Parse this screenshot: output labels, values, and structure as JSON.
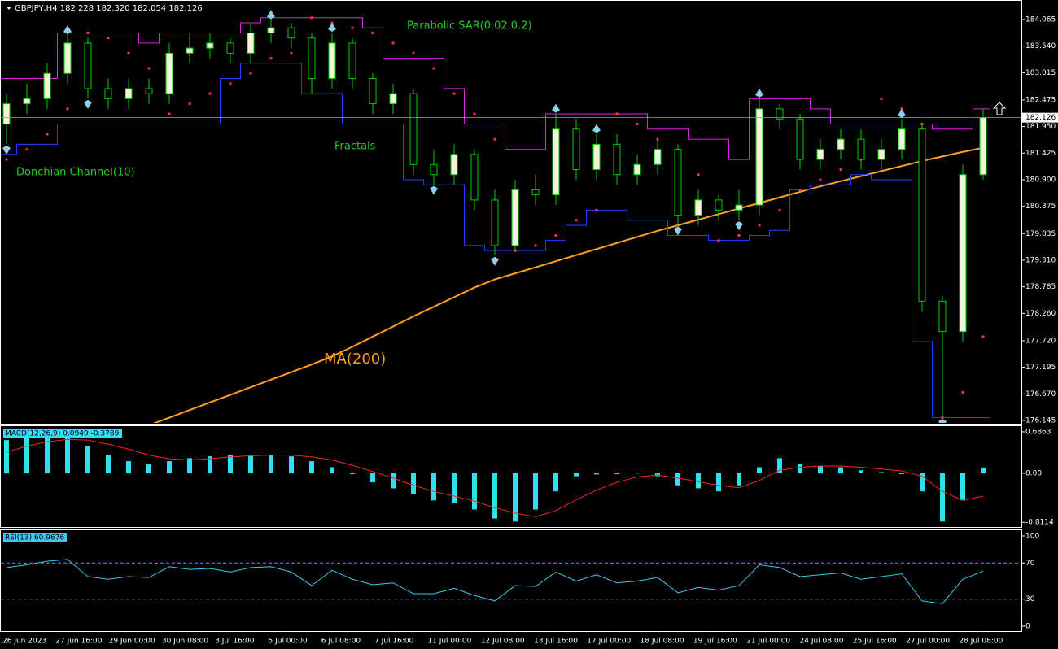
{
  "chart_data": [
    {
      "type": "candlestick",
      "title": "GBPJPY,H4  182.228 182.320 182.054 182.126",
      "annotations": [
        "Parabolic SAR(0.02,0.2)",
        "Fractals",
        "Donchian Channel(10)",
        "MA(200)"
      ],
      "x_labels": [
        "26 Jun 2023",
        "27 Jun 16:00",
        "29 Jun 00:00",
        "30 Jun 08:00",
        "3 Jul 16:00",
        "5 Jul 00:00",
        "6 Jul 08:00",
        "7 Jul 16:00",
        "11 Jul 00:00",
        "12 Jul 08:00",
        "13 Jul 16:00",
        "17 Jul 00:00",
        "18 Jul 08:00",
        "19 Jul 16:00",
        "21 Jul 00:00",
        "24 Jul 08:00",
        "25 Jul 16:00",
        "27 Jul 00:00",
        "28 Jul 08:00"
      ],
      "open": [
        182.0,
        182.4,
        182.5,
        183.0,
        183.6,
        182.7,
        182.5,
        182.7,
        182.6,
        183.4,
        183.5,
        183.6,
        183.4,
        183.8,
        183.9,
        183.7,
        182.9,
        183.6,
        182.9,
        182.4,
        182.6,
        181.2,
        181.0,
        181.4,
        180.5,
        179.6,
        180.7,
        180.6,
        181.9,
        181.1,
        181.6,
        181.0,
        181.2,
        181.5,
        180.2,
        180.5,
        180.3,
        180.4,
        182.3,
        182.1,
        181.3,
        181.5,
        181.7,
        181.3,
        181.5,
        181.9,
        178.5,
        177.9,
        181.0
      ],
      "high": [
        182.6,
        182.8,
        183.2,
        183.8,
        183.7,
        182.9,
        182.9,
        182.9,
        183.6,
        183.8,
        183.8,
        183.7,
        184.0,
        184.1,
        184.0,
        183.8,
        183.8,
        183.7,
        183.0,
        182.8,
        182.7,
        181.5,
        181.6,
        181.5,
        180.7,
        180.9,
        181.0,
        182.2,
        182.1,
        181.8,
        181.8,
        181.4,
        181.7,
        181.6,
        180.7,
        180.6,
        180.7,
        182.5,
        182.4,
        182.2,
        181.7,
        181.9,
        181.9,
        181.7,
        182.1,
        182.0,
        178.6,
        181.2,
        182.3
      ],
      "low": [
        181.6,
        182.2,
        182.3,
        182.8,
        182.5,
        182.3,
        182.3,
        182.4,
        182.4,
        183.2,
        183.3,
        183.2,
        183.2,
        183.6,
        183.5,
        182.6,
        182.7,
        182.7,
        182.2,
        182.2,
        181.0,
        180.8,
        180.8,
        180.3,
        179.4,
        179.5,
        180.4,
        180.4,
        180.9,
        180.9,
        180.8,
        180.8,
        181.0,
        180.0,
        180.0,
        180.1,
        180.1,
        180.2,
        181.9,
        181.1,
        181.1,
        181.3,
        181.1,
        181.1,
        181.3,
        178.3,
        176.2,
        177.7,
        180.9
      ],
      "close": [
        182.4,
        182.5,
        183.0,
        183.6,
        182.7,
        182.5,
        182.7,
        182.6,
        183.4,
        183.5,
        183.6,
        183.4,
        183.8,
        183.9,
        183.7,
        182.9,
        183.6,
        182.9,
        182.4,
        182.6,
        181.2,
        181.0,
        181.4,
        180.5,
        179.6,
        180.7,
        180.6,
        181.9,
        181.1,
        181.6,
        181.0,
        181.2,
        181.5,
        180.2,
        180.5,
        180.3,
        180.4,
        182.3,
        182.1,
        181.3,
        181.5,
        181.7,
        181.3,
        181.5,
        181.9,
        178.5,
        177.9,
        181.0,
        182.126
      ],
      "ma": {
        "color": "#ffa020",
        "values": [
          175.0,
          175.15,
          175.3,
          175.45,
          175.6,
          175.75,
          175.9,
          176.05,
          176.2,
          176.35,
          176.5,
          176.65,
          176.8,
          176.95,
          177.1,
          177.25,
          177.41,
          177.6,
          177.8,
          178.0,
          178.2,
          178.39,
          178.58,
          178.77,
          178.93,
          179.05,
          179.17,
          179.29,
          179.41,
          179.53,
          179.65,
          179.77,
          179.89,
          180.0,
          180.11,
          180.22,
          180.33,
          180.44,
          180.55,
          180.66,
          180.77,
          180.87,
          180.97,
          181.07,
          181.17,
          181.27,
          181.36,
          181.45,
          181.53
        ]
      },
      "donchian_upper": {
        "color": "#e020e0",
        "values": [
          182.9,
          182.9,
          182.9,
          183.8,
          183.8,
          183.8,
          183.8,
          183.6,
          183.8,
          183.8,
          183.8,
          183.8,
          184.0,
          184.1,
          184.1,
          184.1,
          184.1,
          184.1,
          183.9,
          183.3,
          183.3,
          183.3,
          182.7,
          182.0,
          182.0,
          181.5,
          181.5,
          182.2,
          182.2,
          182.2,
          182.2,
          182.2,
          181.9,
          181.9,
          181.7,
          181.7,
          181.3,
          182.5,
          182.5,
          182.5,
          182.3,
          182.0,
          182.0,
          182.0,
          182.0,
          182.0,
          181.9,
          181.9,
          182.3
        ]
      },
      "donchian_lower": {
        "color": "#2040ff",
        "values": [
          181.4,
          181.6,
          181.6,
          182.0,
          182.0,
          182.0,
          182.0,
          182.0,
          182.0,
          182.0,
          182.0,
          182.9,
          183.2,
          183.2,
          183.2,
          182.6,
          182.6,
          182.0,
          182.0,
          182.0,
          180.9,
          180.8,
          180.8,
          179.6,
          179.5,
          179.5,
          179.5,
          179.7,
          180.0,
          180.3,
          180.3,
          180.1,
          180.1,
          179.8,
          179.8,
          179.7,
          179.7,
          179.8,
          179.9,
          180.7,
          180.8,
          180.8,
          181.0,
          180.9,
          180.9,
          177.7,
          176.2,
          176.2,
          176.2
        ]
      },
      "sar": {
        "color": "#ff3050",
        "values": [
          181.3,
          181.5,
          181.8,
          182.3,
          183.8,
          183.7,
          183.4,
          183.1,
          182.2,
          182.4,
          182.6,
          182.8,
          183.0,
          183.3,
          183.4,
          184.1,
          184.0,
          183.9,
          183.8,
          183.6,
          183.4,
          183.1,
          182.6,
          182.2,
          181.7,
          179.5,
          179.6,
          179.8,
          180.1,
          180.3,
          182.2,
          182.0,
          181.7,
          181.3,
          181.0,
          179.7,
          179.8,
          180.0,
          180.3,
          180.7,
          180.9,
          181.1,
          181.3,
          182.5,
          182.3,
          182.0,
          176.2,
          176.7,
          177.8
        ]
      },
      "fractals_up": {
        "x": [
          3,
          13,
          16,
          27,
          29,
          37,
          44
        ],
        "values": [
          183.95,
          184.25,
          184.0,
          182.4,
          182.0,
          182.7,
          182.3
        ]
      },
      "fractals_down": {
        "x": [
          0,
          4,
          21,
          24,
          33,
          36,
          46
        ],
        "values": [
          181.4,
          182.3,
          180.6,
          179.2,
          179.8,
          179.9,
          176.0
        ]
      },
      "last_price": 182.126,
      "ylim": [
        176.08,
        184.45
      ],
      "yticks": [
        184.065,
        {
          "value": 183.54,
          "label": "183.540"
        },
        183.015,
        182.475,
        {
          "value": 181.95,
          "label": "181.950"
        },
        181.425,
        {
          "value": 180.9,
          "label": "180.900"
        },
        180.375,
        179.835,
        {
          "value": 179.31,
          "label": "179.310"
        },
        178.785,
        {
          "value": 178.26,
          "label": "178.260"
        },
        {
          "value": 177.72,
          "label": "177.720"
        },
        177.195,
        {
          "value": 176.67,
          "label": "176.670"
        },
        176.145
      ]
    },
    {
      "type": "bar",
      "title": "MACD(12,26,9) 0.0949 -0.3789",
      "color": "#30e0f0",
      "signal_color": "#ff2020",
      "values": [
        0.55,
        0.6,
        0.6,
        0.6,
        0.45,
        0.3,
        0.2,
        0.15,
        0.2,
        0.25,
        0.28,
        0.3,
        0.3,
        0.3,
        0.28,
        0.2,
        0.1,
        0.0,
        -0.15,
        -0.25,
        -0.35,
        -0.45,
        -0.5,
        -0.6,
        -0.75,
        -0.8,
        -0.6,
        -0.3,
        -0.05,
        -0.02,
        0.0,
        0.01,
        -0.05,
        -0.2,
        -0.25,
        -0.3,
        -0.2,
        0.1,
        0.25,
        0.15,
        0.12,
        0.1,
        0.05,
        0.02,
        0.0,
        -0.3,
        -0.8,
        -0.45,
        0.0949
      ],
      "signal": [
        0.35,
        0.45,
        0.52,
        0.56,
        0.55,
        0.48,
        0.4,
        0.3,
        0.24,
        0.22,
        0.24,
        0.27,
        0.29,
        0.3,
        0.3,
        0.27,
        0.22,
        0.13,
        0.03,
        -0.08,
        -0.2,
        -0.3,
        -0.38,
        -0.46,
        -0.57,
        -0.66,
        -0.72,
        -0.62,
        -0.44,
        -0.28,
        -0.15,
        -0.06,
        -0.03,
        -0.08,
        -0.14,
        -0.2,
        -0.24,
        -0.12,
        0.05,
        0.1,
        0.12,
        0.12,
        0.1,
        0.07,
        0.04,
        -0.05,
        -0.3,
        -0.45,
        -0.3789
      ],
      "ylim": [
        -0.89,
        0.78
      ],
      "yticks": [
        0.6863,
        {
          "value": 0,
          "label": "0.00"
        },
        -0.8114
      ]
    },
    {
      "type": "line",
      "title": "RSI(13) 60.9676",
      "color": "#40c8f0",
      "level_color": "#8080ff",
      "values": [
        65,
        68,
        72,
        74,
        55,
        52,
        55,
        54,
        66,
        63,
        64,
        60,
        65,
        66,
        60,
        45,
        62,
        52,
        46,
        48,
        36,
        36,
        42,
        34,
        28,
        45,
        44,
        60,
        50,
        57,
        48,
        50,
        54,
        37,
        43,
        40,
        45,
        68,
        65,
        55,
        57,
        59,
        52,
        55,
        58,
        28,
        25,
        52,
        60.9676
      ],
      "ylim": [
        -5.4,
        106.3
      ],
      "yticks": [
        100,
        70,
        30,
        0
      ],
      "levels": [
        70,
        30
      ]
    }
  ]
}
